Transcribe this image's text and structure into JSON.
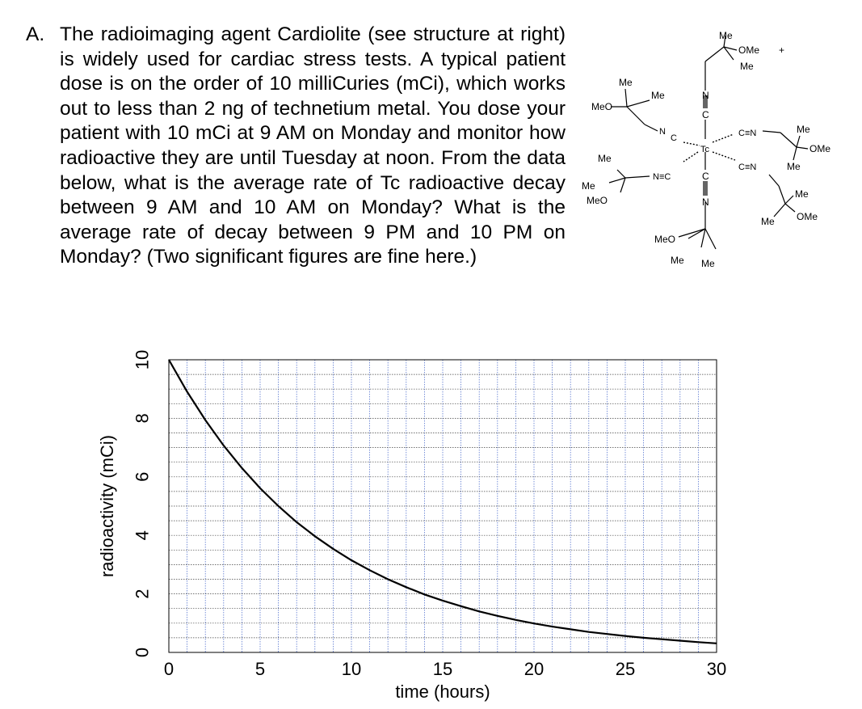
{
  "question": {
    "label": "A.",
    "text": "The radioimaging agent Cardiolite (see structure at right) is widely used for cardiac stress tests. A typical patient dose is on the order of 10 milliCuries (mCi), which works out to less than 2 ng of technetium metal. You dose your patient with 10 mCi at 9 AM on Monday and monitor how radioactive they are until Tuesday at noon. From the data below, what is the average rate of Tc radioactive decay between 9 AM and 10 AM on Monday? What is the average rate of decay between 9 PM and 10 PM on Monday? (Two significant figures are fine here.)"
  },
  "structure": {
    "center": "Tc",
    "charge": "+",
    "labels": {
      "me": "Me",
      "ome": "OMe",
      "meo": "MeO",
      "n": "N",
      "c": "C",
      "nc": "N≡C",
      "cn": "C≡N"
    }
  },
  "chart_data": {
    "type": "line",
    "title": "",
    "xlabel": "time (hours)",
    "ylabel": "radioactivity (mCi)",
    "xlim": [
      0,
      30
    ],
    "ylim": [
      0,
      10
    ],
    "xticks": [
      "0",
      "5",
      "10",
      "15",
      "20",
      "25",
      "30"
    ],
    "yticks": [
      "0",
      "2",
      "4",
      "6",
      "8",
      "10"
    ],
    "grid": true,
    "series": [
      {
        "x": [
          0,
          1,
          2,
          3,
          4,
          5,
          6,
          7,
          8,
          9,
          10,
          11,
          12,
          13,
          14,
          15,
          16,
          17,
          18,
          19,
          20,
          21,
          22,
          23,
          24,
          25,
          26,
          27,
          28,
          29,
          30
        ],
        "values": [
          10.0,
          8.91,
          7.94,
          7.07,
          6.3,
          5.61,
          5.0,
          4.45,
          3.97,
          3.54,
          3.15,
          2.81,
          2.5,
          2.23,
          1.98,
          1.77,
          1.58,
          1.4,
          1.25,
          1.11,
          0.99,
          0.88,
          0.79,
          0.7,
          0.63,
          0.56,
          0.5,
          0.45,
          0.4,
          0.35,
          0.31
        ]
      }
    ]
  }
}
